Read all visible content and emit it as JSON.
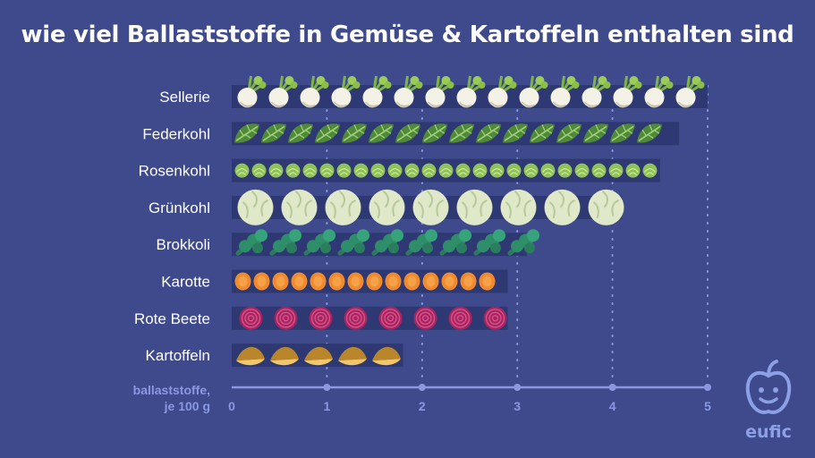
{
  "title": "wie viel Ballaststoffe in Gemüse & Kartoffeln enthalten sind",
  "logo": {
    "name": "eufic",
    "icon": "apple-face-icon"
  },
  "colors": {
    "background": "#3f4a8d",
    "bar": "#2e3872",
    "axis": "#8a98e0",
    "grid": "#8a98e0",
    "label": "#ffffff"
  },
  "chart_data": {
    "type": "bar",
    "orientation": "horizontal",
    "title": "wie viel Ballaststoffe in Gemüse & Kartoffeln enthalten sind",
    "xlabel_lines": [
      "ballaststoffe,",
      "je 100 g"
    ],
    "categories": [
      "Sellerie",
      "Federkohl",
      "Rosenkohl",
      "Grünkohl",
      "Brokkoli",
      "Karotte",
      "Rote Beete",
      "Kartoffeln"
    ],
    "values": [
      5.0,
      4.7,
      4.5,
      4.1,
      3.1,
      2.9,
      2.9,
      1.8
    ],
    "icons": [
      "celery-root-icon",
      "kale-leaf-icon",
      "brussels-sprout-icon",
      "cabbage-icon",
      "broccoli-icon",
      "carrot-slice-icon",
      "beetroot-slice-icon",
      "potato-wedge-icon"
    ],
    "xlim": [
      0,
      5
    ],
    "ticks": [
      0,
      1,
      2,
      3,
      4,
      5
    ],
    "grid": true
  }
}
